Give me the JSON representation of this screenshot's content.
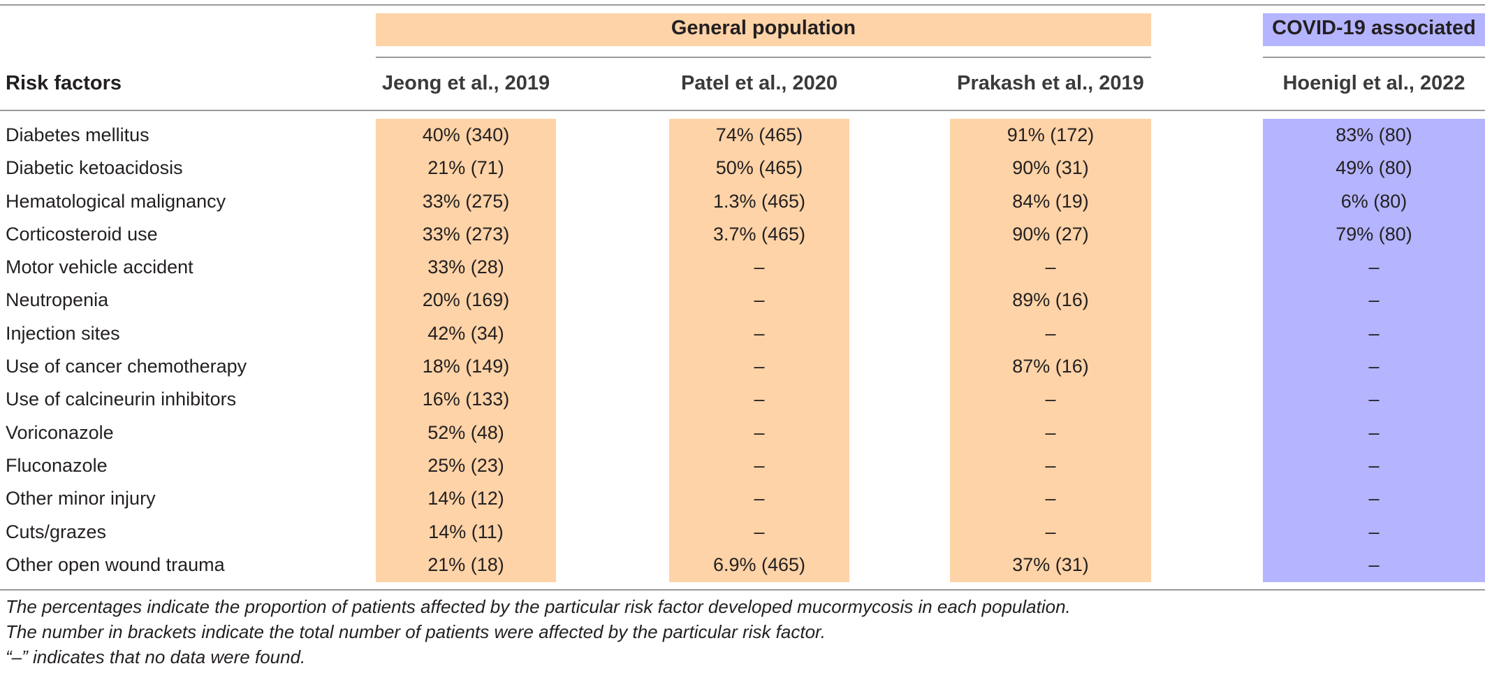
{
  "groups": {
    "general": "General population",
    "covid": "COVID-19 associated"
  },
  "headers": {
    "risk_factors": "Risk factors",
    "col1": "Jeong et al., 2019",
    "col2": "Patel et al., 2020",
    "col3": "Prakash et al., 2019",
    "col4": "Hoenigl et al., 2022"
  },
  "rows": [
    {
      "factor": "Diabetes mellitus",
      "jeong": "40% (340)",
      "patel": "74% (465)",
      "prakash": "91% (172)",
      "hoenigl": "83% (80)"
    },
    {
      "factor": "Diabetic ketoacidosis",
      "jeong": "21% (71)",
      "patel": "50% (465)",
      "prakash": "90% (31)",
      "hoenigl": "49% (80)"
    },
    {
      "factor": "Hematological malignancy",
      "jeong": "33% (275)",
      "patel": "1.3% (465)",
      "prakash": "84% (19)",
      "hoenigl": "6% (80)"
    },
    {
      "factor": "Corticosteroid use",
      "jeong": "33% (273)",
      "patel": "3.7% (465)",
      "prakash": "90% (27)",
      "hoenigl": "79% (80)"
    },
    {
      "factor": "Motor vehicle accident",
      "jeong": "33% (28)",
      "patel": "–",
      "prakash": "–",
      "hoenigl": "–"
    },
    {
      "factor": "Neutropenia",
      "jeong": "20% (169)",
      "patel": "–",
      "prakash": "89% (16)",
      "hoenigl": "–"
    },
    {
      "factor": "Injection sites",
      "jeong": "42% (34)",
      "patel": "–",
      "prakash": "–",
      "hoenigl": "–"
    },
    {
      "factor": "Use of cancer chemotherapy",
      "jeong": "18% (149)",
      "patel": "–",
      "prakash": "87% (16)",
      "hoenigl": "–"
    },
    {
      "factor": "Use of calcineurin inhibitors",
      "jeong": "16% (133)",
      "patel": "–",
      "prakash": "–",
      "hoenigl": "–"
    },
    {
      "factor": "Voriconazole",
      "jeong": "52% (48)",
      "patel": "–",
      "prakash": "–",
      "hoenigl": "–"
    },
    {
      "factor": "Fluconazole",
      "jeong": "25% (23)",
      "patel": "–",
      "prakash": "–",
      "hoenigl": "–"
    },
    {
      "factor": "Other minor injury",
      "jeong": "14% (12)",
      "patel": "–",
      "prakash": "–",
      "hoenigl": "–"
    },
    {
      "factor": "Cuts/grazes",
      "jeong": "14% (11)",
      "patel": "–",
      "prakash": "–",
      "hoenigl": "–"
    },
    {
      "factor": "Other open wound trauma",
      "jeong": "21% (18)",
      "patel": "6.9% (465)",
      "prakash": "37% (31)",
      "hoenigl": "–"
    }
  ],
  "footnotes": [
    "The percentages indicate the proportion of patients affected by the particular risk factor developed mucormycosis in each population.",
    "The number in brackets indicate the total number of patients were affected by the particular risk factor.",
    "“–” indicates that no data were found."
  ],
  "colors": {
    "general_shade": "#fdd3a7",
    "covid_shade": "#b4b4ff"
  }
}
